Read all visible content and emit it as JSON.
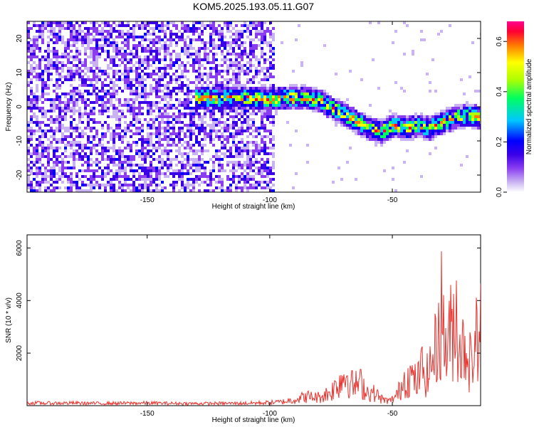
{
  "title": "KOM5.2025.193.05.11.G07",
  "chart_data": [
    {
      "type": "heatmap",
      "xlabel": "Height of straight line (km)",
      "ylabel": "Frequency (Hz)",
      "xlim": [
        -199,
        -14
      ],
      "ylim": [
        -25,
        25
      ],
      "xticks": [
        -150,
        -100,
        -50
      ],
      "yticks": [
        -20,
        -10,
        0,
        10,
        20
      ],
      "colorbar": {
        "label": "Normalized spectral amplitude",
        "range": [
          0.0,
          0.68
        ],
        "ticks": [
          "0.0",
          "0.2",
          "0.4",
          "0.6"
        ],
        "colors": [
          "#ffffff",
          "#c9b3f2",
          "#8a3ef0",
          "#3a00e8",
          "#0000ff",
          "#00c8ff",
          "#00ff60",
          "#b0ff00",
          "#ffff00",
          "#ff7a00",
          "#ff0030",
          "#ff0090"
        ]
      },
      "ridge": {
        "name": "",
        "x": [
          -131,
          -120,
          -110,
          -100,
          -95,
          -90,
          -85,
          -80,
          -75,
          -70,
          -65,
          -60,
          -55,
          -50,
          -45,
          -40,
          -35,
          -30,
          -25,
          -20,
          -14
        ],
        "y": [
          3,
          3,
          3,
          2.5,
          3,
          3,
          3,
          2,
          0,
          -2,
          -4,
          -6,
          -7,
          -5,
          -6,
          -5,
          -6,
          -4,
          -3,
          -2,
          -3
        ]
      }
    },
    {
      "type": "line",
      "xlabel": "Height of straight line (km)",
      "ylabel": "SNR (10 * v/v)",
      "xlim": [
        -199,
        -14
      ],
      "ylim": [
        0,
        6500
      ],
      "xticks": [
        -150,
        -100,
        -50
      ],
      "yticks": [
        2000,
        4000,
        6000
      ],
      "series": [
        {
          "name": "",
          "color": "#e8332e",
          "x": [
            -199,
            -190,
            -180,
            -170,
            -160,
            -150,
            -140,
            -130,
            -120,
            -110,
            -100,
            -95,
            -90,
            -85,
            -80,
            -75,
            -72,
            -69,
            -66,
            -63,
            -60,
            -57,
            -54,
            -51,
            -48,
            -45,
            -42,
            -40,
            -38,
            -36,
            -34,
            -32,
            -30,
            -28,
            -26,
            -24,
            -22,
            -20,
            -18,
            -16,
            -14
          ],
          "y": [
            180,
            160,
            170,
            150,
            160,
            170,
            150,
            140,
            150,
            160,
            200,
            250,
            400,
            600,
            550,
            900,
            1500,
            2100,
            1300,
            1500,
            900,
            800,
            400,
            300,
            700,
            1800,
            1900,
            1500,
            2500,
            1900,
            2800,
            3900,
            6200,
            3600,
            4900,
            6100,
            3500,
            4200,
            2700,
            4200,
            5200
          ]
        }
      ]
    }
  ]
}
